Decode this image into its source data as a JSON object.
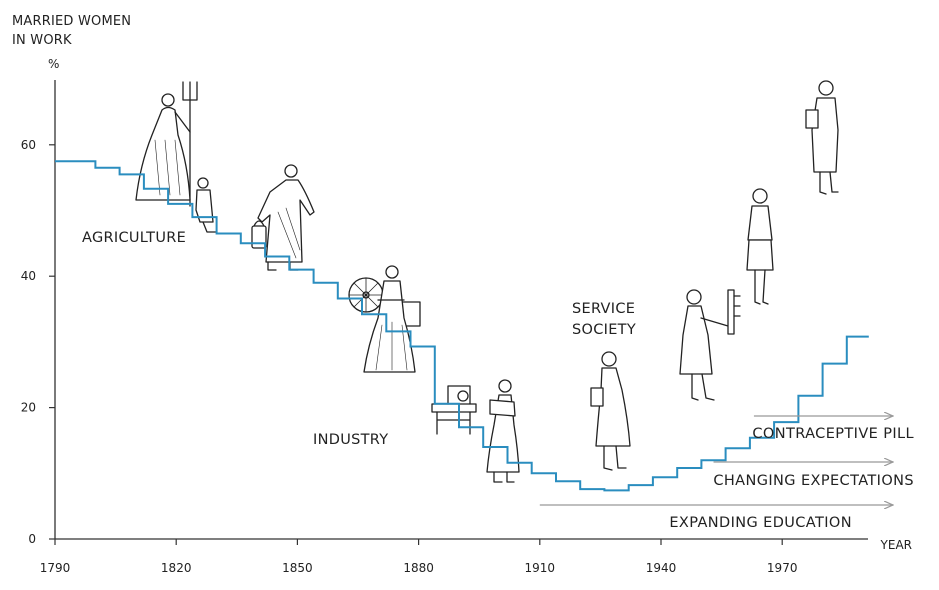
{
  "chart_data": {
    "type": "line",
    "title": "",
    "ylabel": "MARRIED WOMEN IN WORK",
    "ylabel_lines": [
      "MARRIED WOMEN",
      "IN WORK"
    ],
    "yunit": "%",
    "xlabel": "YEAR",
    "xlim": [
      1790,
      1990
    ],
    "ylim": [
      0,
      70
    ],
    "xticks": [
      1790,
      1820,
      1850,
      1880,
      1910,
      1940,
      1970
    ],
    "yticks": [
      0,
      20,
      40,
      60
    ],
    "grid": false,
    "line_color": "#2a8dbf",
    "series": [
      {
        "step": true,
        "x": [
          1790,
          1795,
          1800,
          1806,
          1812,
          1818,
          1824,
          1830,
          1836,
          1842,
          1848,
          1854,
          1860,
          1866,
          1872,
          1878,
          1884,
          1890,
          1896,
          1902,
          1908,
          1914,
          1920,
          1926,
          1932,
          1938,
          1944,
          1950,
          1956,
          1962,
          1968,
          1974,
          1980,
          1986
        ],
        "y": [
          57.5,
          57.5,
          56.5,
          55.5,
          53.3,
          51.0,
          49.0,
          46.5,
          45.0,
          43.0,
          41.0,
          39.0,
          36.6,
          34.2,
          31.6,
          29.3,
          20.6,
          17.0,
          14.0,
          11.6,
          10.0,
          8.8,
          7.6,
          7.4,
          8.2,
          9.4,
          10.8,
          12.0,
          13.8,
          15.4,
          17.8,
          21.8,
          26.7,
          30.8
        ]
      }
    ],
    "annotations": {
      "eras": [
        "AGRICULTURE",
        "INDUSTRY",
        "SERVICE",
        "SOCIETY"
      ],
      "trends": [
        {
          "label": "CONTRACEPTIVE PILL",
          "x_start": 1963,
          "x_end": 1990
        },
        {
          "label": "CHANGING EXPECTATIONS",
          "x_start": 1953,
          "x_end": 1990
        },
        {
          "label": "EXPANDING EDUCATION",
          "x_start": 1910,
          "x_end": 1990
        }
      ]
    },
    "figures": [
      "farm-woman-with-pitchfork-icon",
      "milkmaid-icon",
      "spinner-with-wheel-icon",
      "seamstress-with-sewing-machine-icon",
      "servant-icon",
      "office-clerk-icon",
      "switchboard-operator-icon",
      "secretary-icon",
      "businesswoman-icon"
    ]
  }
}
